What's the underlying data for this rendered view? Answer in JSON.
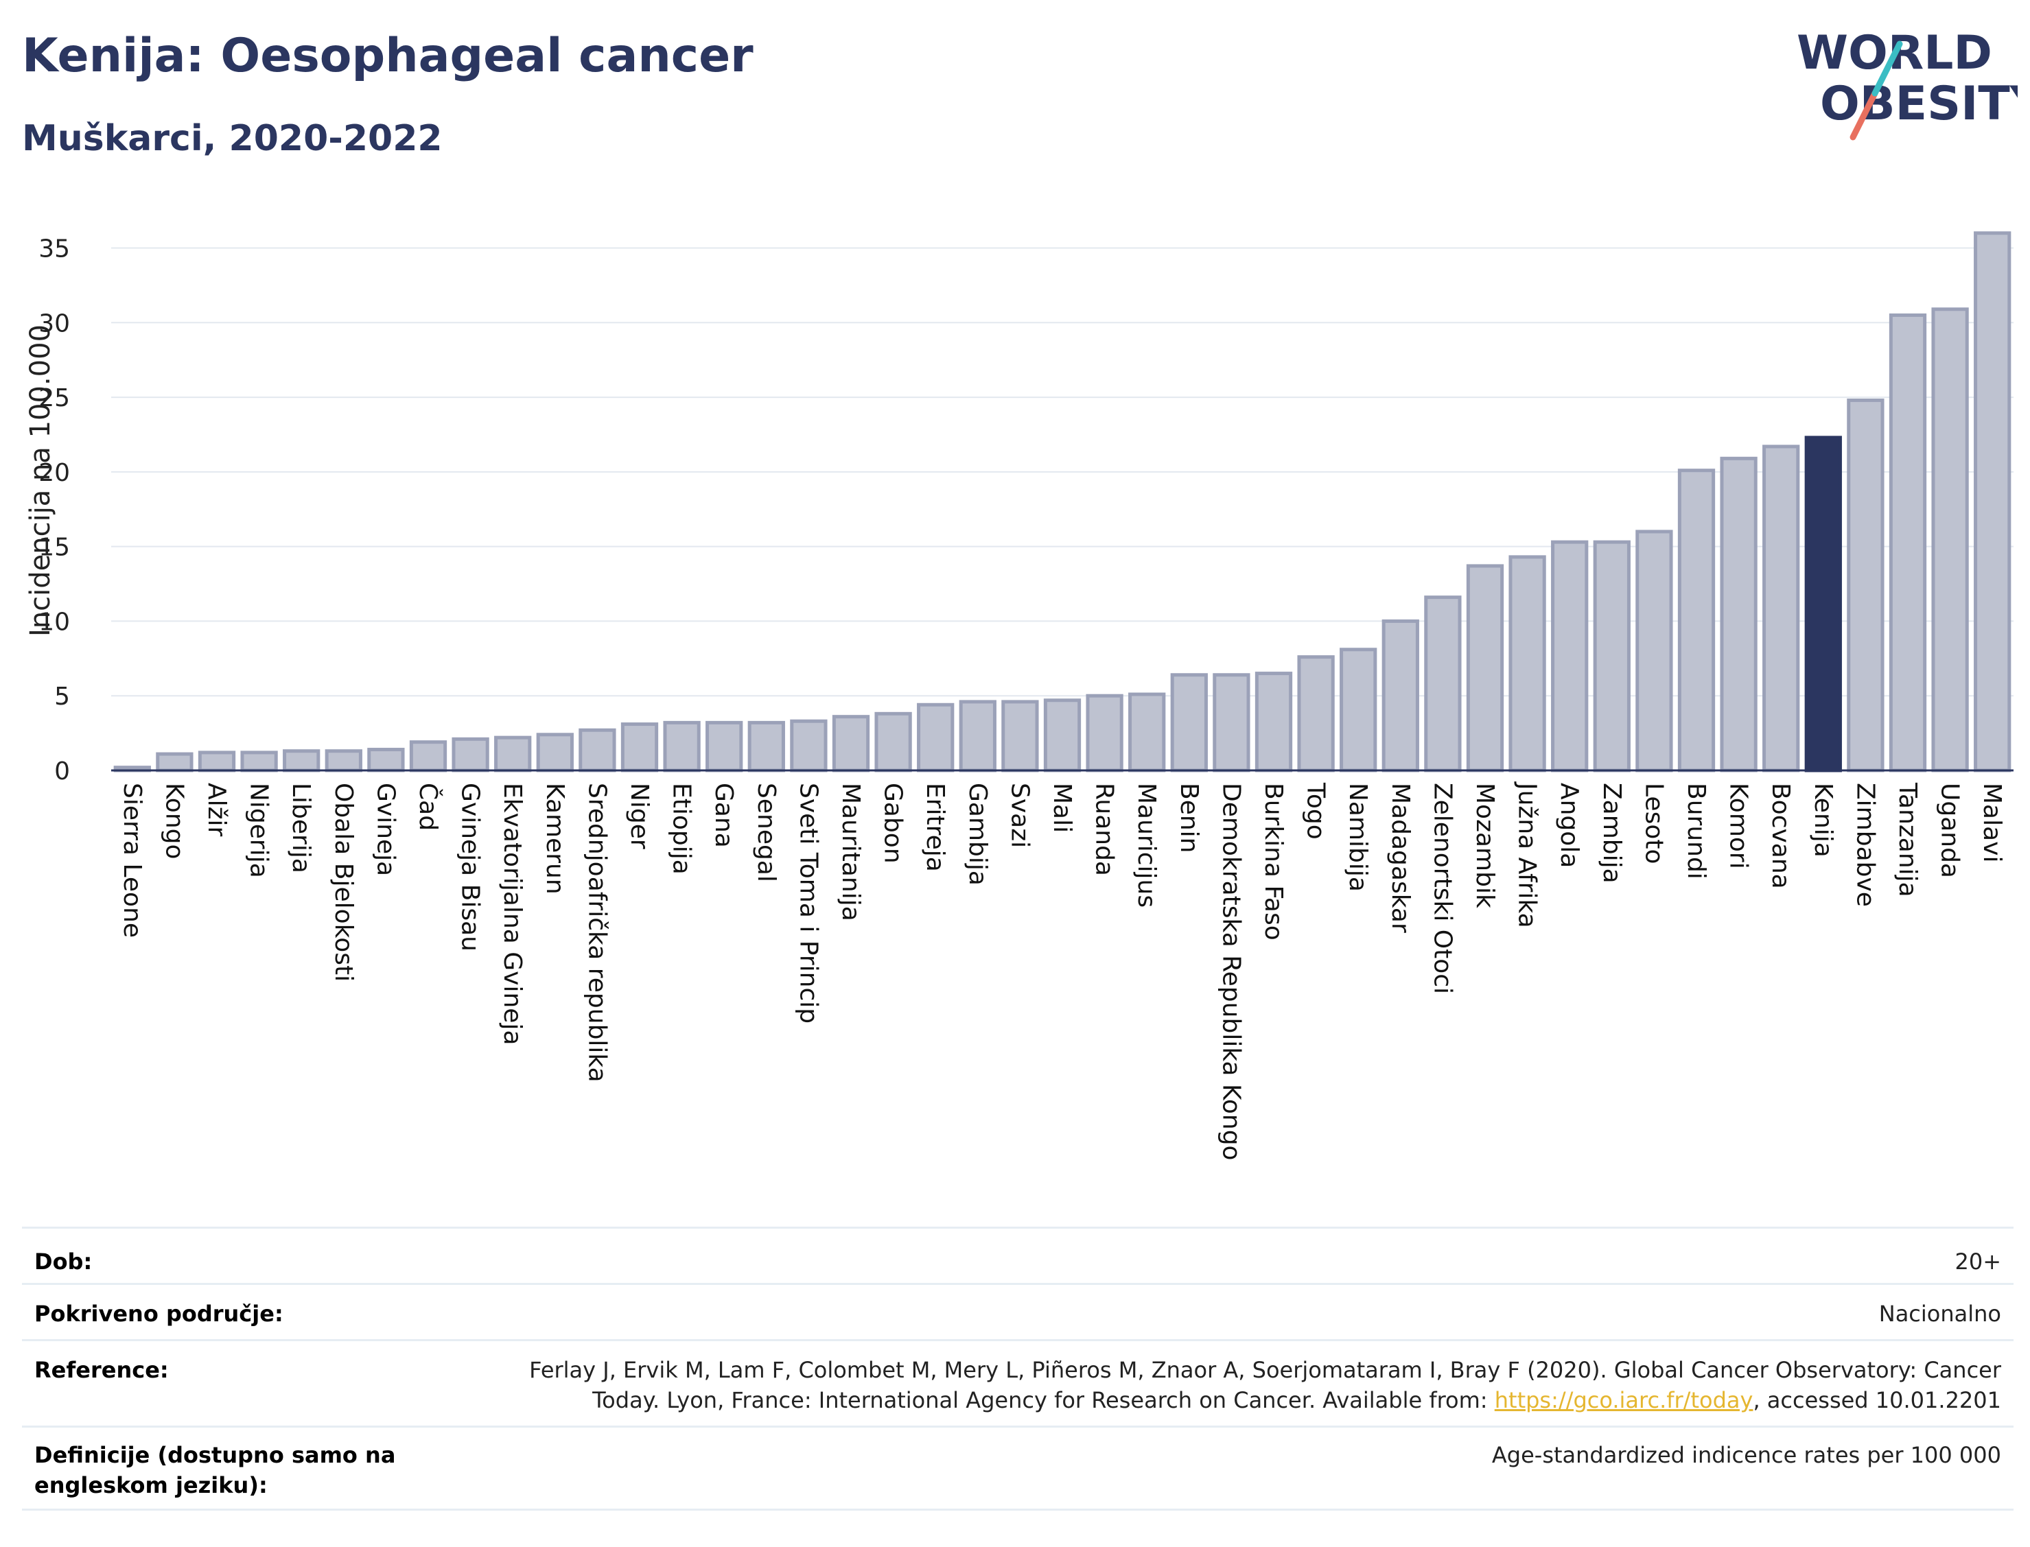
{
  "header": {
    "title": "Kenija: Oesophageal cancer",
    "subtitle": "Muškarci, 2020-2022"
  },
  "logo": {
    "line1": "WORLD",
    "line2": "OBESITY"
  },
  "chart_data": {
    "type": "bar",
    "ylabel": "Incidencija na 100.000",
    "xlabel": "",
    "ylim": [
      0,
      37
    ],
    "yticks": [
      0,
      5,
      10,
      15,
      20,
      25,
      30,
      35
    ],
    "grid": true,
    "highlight_category": "Kenija",
    "colors": {
      "bar": "#bec2d0",
      "bar_edge": "#9ba1b8",
      "highlight": "#2b3660",
      "grid": "#e3e8ef"
    },
    "categories": [
      "Sierra Leone",
      "Kongo",
      "Alžir",
      "Nigerija",
      "Liberija",
      "Obala Bjelokosti",
      "Gvineja",
      "Čad",
      "Gvineja Bisau",
      "Ekvatorijalna Gvineja",
      "Kamerun",
      "Srednjoafrička republika",
      "Niger",
      "Etiopija",
      "Gana",
      "Senegal",
      "Sveti Toma i Princip",
      "Mauritanija",
      "Gabon",
      "Eritreja",
      "Gambija",
      "Svazi",
      "Mali",
      "Ruanda",
      "Mauricijus",
      "Benin",
      "Demokratska Republika Kongo",
      "Burkina Faso",
      "Togo",
      "Namibija",
      "Madagaskar",
      "Zelenortski Otoci",
      "Mozambik",
      "Južna Afrika",
      "Angola",
      "Zambija",
      "Lesoto",
      "Burundi",
      "Komori",
      "Bocvana",
      "Kenija",
      "Zimbabve",
      "Tanzanija",
      "Uganda",
      "Malavi"
    ],
    "values": [
      0.2,
      1.1,
      1.2,
      1.2,
      1.3,
      1.3,
      1.4,
      1.9,
      2.1,
      2.2,
      2.4,
      2.7,
      3.1,
      3.2,
      3.2,
      3.2,
      3.3,
      3.6,
      3.8,
      4.4,
      4.6,
      4.6,
      4.7,
      5.0,
      5.1,
      6.4,
      6.4,
      6.5,
      7.6,
      8.1,
      10.0,
      11.6,
      13.7,
      14.3,
      15.3,
      15.3,
      16.0,
      20.1,
      20.9,
      21.7,
      22.3,
      24.8,
      30.5,
      30.9,
      36.0
    ]
  },
  "meta": {
    "dob_label": "Dob:",
    "dob_value": "20+",
    "area_label": "Pokriveno područje:",
    "area_value": "Nacionalno",
    "ref_label": "Reference:",
    "ref_line1": "Ferlay J, Ervik M, Lam F, Colombet M, Mery L, Piñeros M, Znaor A, Soerjomataram I, Bray F (2020). Global Cancer Observatory: Cancer",
    "ref_line2_pre": "Today. Lyon, France: International Agency for Research on Cancer. Available from: ",
    "ref_link": "https://gco.iarc.fr/today",
    "ref_line2_post": ", accessed 10.01.2201",
    "def_label": "Definicije (dostupno samo na engleskom jeziku):",
    "def_value": "Age-standardized indicence rates per 100 000"
  }
}
